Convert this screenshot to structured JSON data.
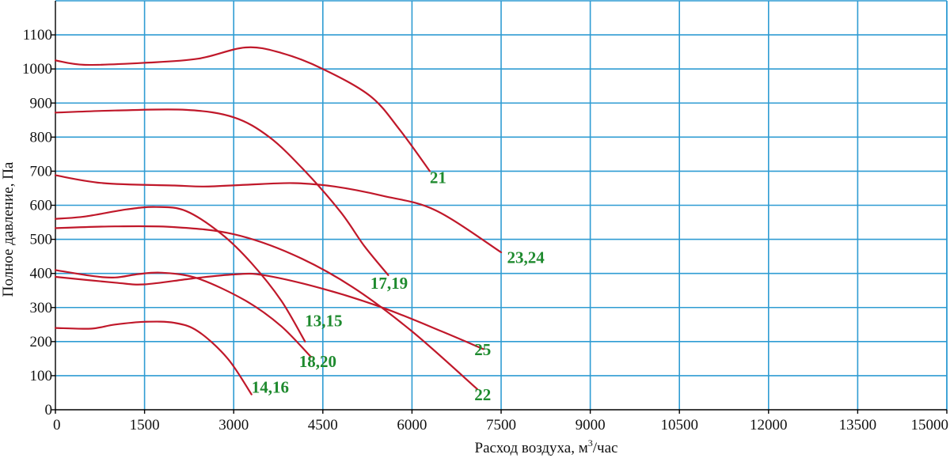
{
  "chart_data": {
    "type": "line",
    "title": "",
    "xlabel": "Расход воздуха, м",
    "xlabel_sup": "3",
    "xlabel_suffix": "/час",
    "ylabel": "Полное давление, Па",
    "xlim": [
      0,
      15000
    ],
    "ylim": [
      0,
      1200
    ],
    "x_ticks": [
      0,
      1500,
      3000,
      4500,
      6000,
      7500,
      9000,
      10500,
      12000,
      13500,
      15000
    ],
    "y_ticks": [
      0,
      100,
      200,
      300,
      400,
      500,
      600,
      700,
      800,
      900,
      1000,
      1100
    ],
    "grid": true,
    "curve_color": "#c0182a",
    "label_color": "#1e8a2e",
    "grid_color": "#2f9cd3",
    "series": [
      {
        "name": "21",
        "points": [
          [
            0,
            1025
          ],
          [
            500,
            1012
          ],
          [
            1500,
            1018
          ],
          [
            2400,
            1030
          ],
          [
            3200,
            1063
          ],
          [
            3800,
            1047
          ],
          [
            4500,
            1000
          ],
          [
            5300,
            920
          ],
          [
            5800,
            820
          ],
          [
            6300,
            700
          ]
        ],
        "label_at": [
          6300,
          665
        ]
      },
      {
        "name": "17,19",
        "points": [
          [
            0,
            872
          ],
          [
            1000,
            878
          ],
          [
            2200,
            880
          ],
          [
            3000,
            858
          ],
          [
            3600,
            800
          ],
          [
            4200,
            700
          ],
          [
            4800,
            580
          ],
          [
            5200,
            480
          ],
          [
            5600,
            395
          ]
        ],
        "label_at": [
          5300,
          355
        ]
      },
      {
        "name": "23,24",
        "points": [
          [
            0,
            688
          ],
          [
            800,
            665
          ],
          [
            2000,
            658
          ],
          [
            2500,
            655
          ],
          [
            3200,
            660
          ],
          [
            4000,
            665
          ],
          [
            4700,
            655
          ],
          [
            5500,
            628
          ],
          [
            6400,
            585
          ],
          [
            7500,
            462
          ]
        ],
        "label_at": [
          7600,
          430
        ]
      },
      {
        "name": "13,15",
        "points": [
          [
            0,
            560
          ],
          [
            500,
            567
          ],
          [
            1200,
            588
          ],
          [
            1700,
            595
          ],
          [
            2200,
            583
          ],
          [
            2800,
            515
          ],
          [
            3300,
            430
          ],
          [
            3800,
            320
          ],
          [
            4200,
            200
          ]
        ],
        "label_at": [
          4200,
          245
        ]
      },
      {
        "name": "22",
        "points": [
          [
            0,
            533
          ],
          [
            1000,
            538
          ],
          [
            2000,
            536
          ],
          [
            3000,
            515
          ],
          [
            4000,
            455
          ],
          [
            5000,
            360
          ],
          [
            6000,
            230
          ],
          [
            7100,
            60
          ]
        ],
        "label_at": [
          7050,
          28
        ]
      },
      {
        "name": "18,20",
        "points": [
          [
            0,
            410
          ],
          [
            600,
            393
          ],
          [
            1000,
            388
          ],
          [
            1400,
            398
          ],
          [
            1800,
            402
          ],
          [
            2400,
            385
          ],
          [
            3200,
            320
          ],
          [
            3800,
            245
          ],
          [
            4300,
            155
          ]
        ],
        "label_at": [
          4100,
          125
        ]
      },
      {
        "name": "25",
        "points": [
          [
            0,
            390
          ],
          [
            1000,
            373
          ],
          [
            1500,
            368
          ],
          [
            2300,
            385
          ],
          [
            3000,
            397
          ],
          [
            3500,
            395
          ],
          [
            4500,
            355
          ],
          [
            5500,
            300
          ],
          [
            6500,
            230
          ],
          [
            7200,
            178
          ]
        ],
        "label_at": [
          7050,
          160
        ]
      },
      {
        "name": "14,16",
        "points": [
          [
            0,
            240
          ],
          [
            600,
            238
          ],
          [
            1000,
            250
          ],
          [
            1500,
            258
          ],
          [
            2000,
            255
          ],
          [
            2400,
            230
          ],
          [
            2900,
            150
          ],
          [
            3300,
            45
          ]
        ],
        "label_at": [
          3300,
          50
        ]
      }
    ]
  }
}
